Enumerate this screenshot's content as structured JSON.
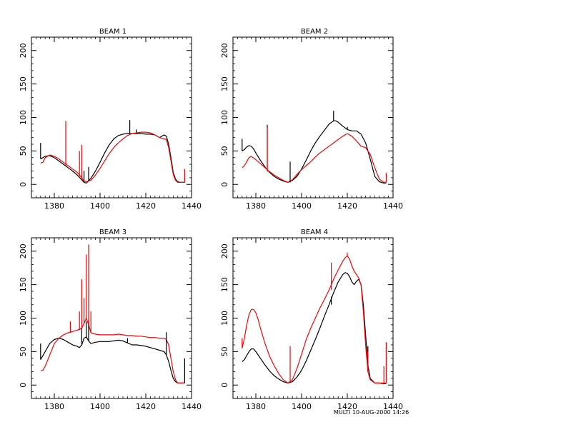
{
  "footer_label": "MULTI 10-AUG-2000 14:26",
  "colors": {
    "series_a": "#000000",
    "series_b": "#ff0000",
    "frame": "#000000"
  },
  "chart_data": [
    {
      "type": "line",
      "title": "BEAM   1",
      "xlim": [
        1370,
        1440
      ],
      "ylim": [
        -20,
        220
      ],
      "xticks": [
        1380,
        1400,
        1420,
        1440
      ],
      "yticks": [
        0,
        50,
        100,
        150,
        200
      ],
      "xtick_labels": [
        "1380",
        "1400",
        "1420",
        "1440"
      ],
      "ytick_labels": [
        "0",
        "50",
        "100",
        "150",
        "200"
      ],
      "series": [
        {
          "name": "black",
          "color": "#000000",
          "x": [
            1374,
            1376,
            1378,
            1380,
            1382,
            1384,
            1386,
            1388,
            1390,
            1392,
            1393,
            1394,
            1396,
            1398,
            1400,
            1402,
            1404,
            1406,
            1408,
            1410,
            1412,
            1414,
            1416,
            1418,
            1420,
            1422,
            1424,
            1426,
            1428,
            1429,
            1430,
            1431,
            1432,
            1433,
            1434,
            1435,
            1436,
            1437
          ],
          "y": [
            38,
            42,
            43,
            40,
            35,
            30,
            25,
            20,
            14,
            7,
            3,
            2,
            9,
            20,
            33,
            47,
            59,
            68,
            73,
            75,
            76,
            76,
            76,
            76,
            75,
            75,
            74,
            70,
            74,
            72,
            60,
            40,
            18,
            8,
            4,
            3,
            3,
            3
          ]
        },
        {
          "name": "red",
          "color": "#ff0000",
          "x": [
            1374,
            1375,
            1376,
            1378,
            1380,
            1382,
            1384,
            1386,
            1388,
            1390,
            1392,
            1393,
            1394,
            1396,
            1398,
            1400,
            1402,
            1404,
            1406,
            1408,
            1410,
            1412,
            1414,
            1416,
            1418,
            1420,
            1422,
            1424,
            1426,
            1428,
            1429,
            1430,
            1431,
            1432,
            1433,
            1434,
            1435,
            1436,
            1437
          ],
          "y": [
            32,
            33,
            40,
            44,
            42,
            38,
            33,
            28,
            23,
            18,
            10,
            5,
            4,
            6,
            14,
            24,
            35,
            46,
            55,
            62,
            68,
            73,
            76,
            77,
            78,
            78,
            77,
            74,
            70,
            68,
            67,
            55,
            35,
            15,
            6,
            3,
            3,
            3,
            3
          ]
        }
      ],
      "spikes": [
        {
          "color": "#000000",
          "x": [
            1374,
            1393,
            1395,
            1413,
            1416
          ],
          "y_base": [
            38,
            3,
            5,
            76,
            76
          ],
          "y_top": [
            62,
            20,
            26,
            96,
            82
          ]
        },
        {
          "color": "#ff0000",
          "x": [
            1385,
            1391,
            1392,
            1437
          ],
          "y_base": [
            28,
            12,
            8,
            3
          ],
          "y_top": [
            95,
            50,
            59,
            23
          ]
        }
      ]
    },
    {
      "type": "line",
      "title": "BEAM   2",
      "xlim": [
        1370,
        1440
      ],
      "ylim": [
        -20,
        220
      ],
      "xticks": [
        1380,
        1400,
        1420,
        1440
      ],
      "yticks": [
        0,
        50,
        100,
        150,
        200
      ],
      "xtick_labels": [
        "1380",
        "1400",
        "1420",
        "1440"
      ],
      "ytick_labels": [
        "0",
        "50",
        "100",
        "150",
        "200"
      ],
      "series": [
        {
          "name": "black",
          "color": "#000000",
          "x": [
            1374,
            1375,
            1376,
            1377,
            1378,
            1379,
            1380,
            1382,
            1384,
            1386,
            1388,
            1390,
            1392,
            1394,
            1396,
            1398,
            1400,
            1402,
            1404,
            1406,
            1408,
            1410,
            1412,
            1414,
            1415,
            1416,
            1418,
            1420,
            1422,
            1424,
            1426,
            1428,
            1430,
            1432,
            1434,
            1436,
            1437
          ],
          "y": [
            50,
            52,
            56,
            58,
            57,
            53,
            47,
            36,
            26,
            18,
            12,
            8,
            5,
            3,
            6,
            12,
            23,
            36,
            50,
            62,
            72,
            81,
            90,
            95,
            95,
            93,
            87,
            82,
            80,
            80,
            75,
            62,
            38,
            12,
            4,
            2,
            2
          ]
        },
        {
          "name": "red",
          "color": "#ff0000",
          "x": [
            1374,
            1375,
            1376,
            1377,
            1378,
            1380,
            1382,
            1384,
            1386,
            1388,
            1390,
            1392,
            1394,
            1396,
            1398,
            1400,
            1402,
            1404,
            1406,
            1408,
            1410,
            1412,
            1414,
            1416,
            1418,
            1420,
            1422,
            1424,
            1426,
            1428,
            1430,
            1432,
            1434,
            1436,
            1437
          ],
          "y": [
            25,
            28,
            34,
            40,
            42,
            37,
            31,
            25,
            19,
            14,
            10,
            6,
            3,
            7,
            15,
            22,
            28,
            34,
            41,
            47,
            52,
            57,
            62,
            67,
            72,
            76,
            72,
            65,
            57,
            55,
            45,
            25,
            8,
            3,
            3
          ]
        }
      ],
      "spikes": [
        {
          "color": "#000000",
          "x": [
            1374,
            1385,
            1395,
            1414,
            1420
          ],
          "y_base": [
            50,
            20,
            3,
            95,
            82
          ],
          "y_top": [
            68,
            89,
            34,
            110,
            86
          ]
        },
        {
          "color": "#ff0000",
          "x": [
            1385,
            1437
          ],
          "y_base": [
            19,
            3
          ],
          "y_top": [
            85,
            17
          ]
        }
      ]
    },
    {
      "type": "line",
      "title": "BEAM   3",
      "xlim": [
        1370,
        1440
      ],
      "ylim": [
        -20,
        220
      ],
      "xticks": [
        1380,
        1400,
        1420,
        1440
      ],
      "yticks": [
        0,
        50,
        100,
        150,
        200
      ],
      "xtick_labels": [
        "1380",
        "1400",
        "1420",
        "1440"
      ],
      "ytick_labels": [
        "0",
        "50",
        "100",
        "150",
        "200"
      ],
      "series": [
        {
          "name": "black",
          "color": "#000000",
          "x": [
            1374,
            1376,
            1378,
            1380,
            1382,
            1384,
            1386,
            1388,
            1390,
            1391,
            1392,
            1393,
            1394,
            1395,
            1396,
            1398,
            1400,
            1402,
            1404,
            1406,
            1408,
            1410,
            1412,
            1414,
            1416,
            1418,
            1420,
            1422,
            1424,
            1426,
            1428,
            1429,
            1430,
            1431,
            1432,
            1433,
            1434,
            1435,
            1436,
            1437
          ],
          "y": [
            38,
            50,
            62,
            68,
            70,
            68,
            64,
            60,
            58,
            56,
            60,
            70,
            72,
            66,
            62,
            64,
            65,
            65,
            65,
            66,
            67,
            66,
            63,
            60,
            60,
            59,
            58,
            56,
            54,
            52,
            50,
            45,
            35,
            22,
            10,
            5,
            3,
            3,
            3,
            3
          ]
        },
        {
          "name": "red",
          "color": "#ff0000",
          "x": [
            1374,
            1375,
            1376,
            1378,
            1380,
            1382,
            1384,
            1386,
            1388,
            1390,
            1392,
            1393,
            1394,
            1395,
            1396,
            1398,
            1400,
            1402,
            1404,
            1406,
            1408,
            1410,
            1412,
            1414,
            1416,
            1418,
            1420,
            1422,
            1424,
            1426,
            1428,
            1429,
            1430,
            1431,
            1432,
            1433,
            1434,
            1435,
            1436,
            1437
          ],
          "y": [
            21,
            22,
            28,
            45,
            62,
            70,
            75,
            78,
            80,
            82,
            85,
            92,
            100,
            90,
            78,
            76,
            75,
            75,
            75,
            75,
            76,
            75,
            74,
            74,
            73,
            73,
            72,
            71,
            71,
            70,
            70,
            68,
            60,
            40,
            20,
            8,
            3,
            3,
            3,
            3
          ]
        }
      ],
      "spikes": [
        {
          "color": "#000000",
          "x": [
            1374,
            1392,
            1394,
            1395,
            1412,
            1429,
            1437
          ],
          "y_base": [
            38,
            60,
            72,
            66,
            63,
            45,
            3
          ],
          "y_top": [
            62,
            85,
            95,
            98,
            70,
            79,
            40
          ]
        },
        {
          "color": "#ff0000",
          "x": [
            1387,
            1391,
            1392,
            1393,
            1394,
            1395,
            1396
          ],
          "y_base": [
            78,
            82,
            85,
            92,
            100,
            90,
            78
          ],
          "y_top": [
            95,
            110,
            158,
            130,
            195,
            210,
            110
          ]
        }
      ]
    },
    {
      "type": "line",
      "title": "BEAM   4",
      "xlim": [
        1370,
        1440
      ],
      "ylim": [
        -20,
        220
      ],
      "xticks": [
        1380,
        1400,
        1420,
        1440
      ],
      "yticks": [
        0,
        50,
        100,
        150,
        200
      ],
      "xtick_labels": [
        "1380",
        "1400",
        "1420",
        "1440"
      ],
      "ytick_labels": [
        "0",
        "50",
        "100",
        "150",
        "200"
      ],
      "series": [
        {
          "name": "black",
          "color": "#000000",
          "x": [
            1374,
            1375,
            1376,
            1377,
            1378,
            1379,
            1380,
            1382,
            1384,
            1386,
            1388,
            1390,
            1392,
            1394,
            1396,
            1398,
            1400,
            1402,
            1404,
            1406,
            1408,
            1410,
            1412,
            1414,
            1416,
            1418,
            1419,
            1420,
            1421,
            1422,
            1423,
            1424,
            1425,
            1426,
            1427,
            1428,
            1429,
            1430,
            1432,
            1434,
            1436,
            1437
          ],
          "y": [
            35,
            38,
            44,
            50,
            54,
            54,
            50,
            40,
            30,
            21,
            14,
            9,
            5,
            3,
            5,
            12,
            22,
            36,
            52,
            68,
            85,
            103,
            120,
            138,
            154,
            165,
            168,
            167,
            162,
            154,
            150,
            155,
            158,
            150,
            120,
            75,
            30,
            10,
            3,
            3,
            2,
            2
          ]
        },
        {
          "name": "red",
          "color": "#ff0000",
          "x": [
            1374,
            1375,
            1376,
            1377,
            1378,
            1379,
            1380,
            1381,
            1382,
            1384,
            1386,
            1388,
            1390,
            1392,
            1394,
            1396,
            1398,
            1400,
            1402,
            1404,
            1406,
            1408,
            1410,
            1412,
            1414,
            1416,
            1418,
            1419,
            1420,
            1421,
            1422,
            1423,
            1424,
            1425,
            1426,
            1427,
            1428,
            1429,
            1430,
            1432,
            1434,
            1436,
            1437
          ],
          "y": [
            55,
            70,
            90,
            105,
            113,
            113,
            108,
            98,
            85,
            62,
            43,
            29,
            17,
            8,
            3,
            8,
            25,
            46,
            68,
            85,
            100,
            115,
            128,
            142,
            158,
            172,
            185,
            190,
            193,
            188,
            178,
            170,
            165,
            160,
            150,
            110,
            60,
            20,
            8,
            3,
            3,
            3,
            3
          ]
        }
      ],
      "spikes": [
        {
          "color": "#000000",
          "x": [
            1413,
            1429
          ],
          "y_base": [
            120,
            30
          ],
          "y_top": [
            132,
            58
          ]
        },
        {
          "color": "#ff0000",
          "x": [
            1374,
            1395,
            1413,
            1420,
            1429,
            1436,
            1437
          ],
          "y_base": [
            55,
            3,
            142,
            193,
            20,
            3,
            3
          ],
          "y_top": [
            70,
            58,
            183,
            198,
            50,
            28,
            64
          ]
        }
      ]
    }
  ]
}
